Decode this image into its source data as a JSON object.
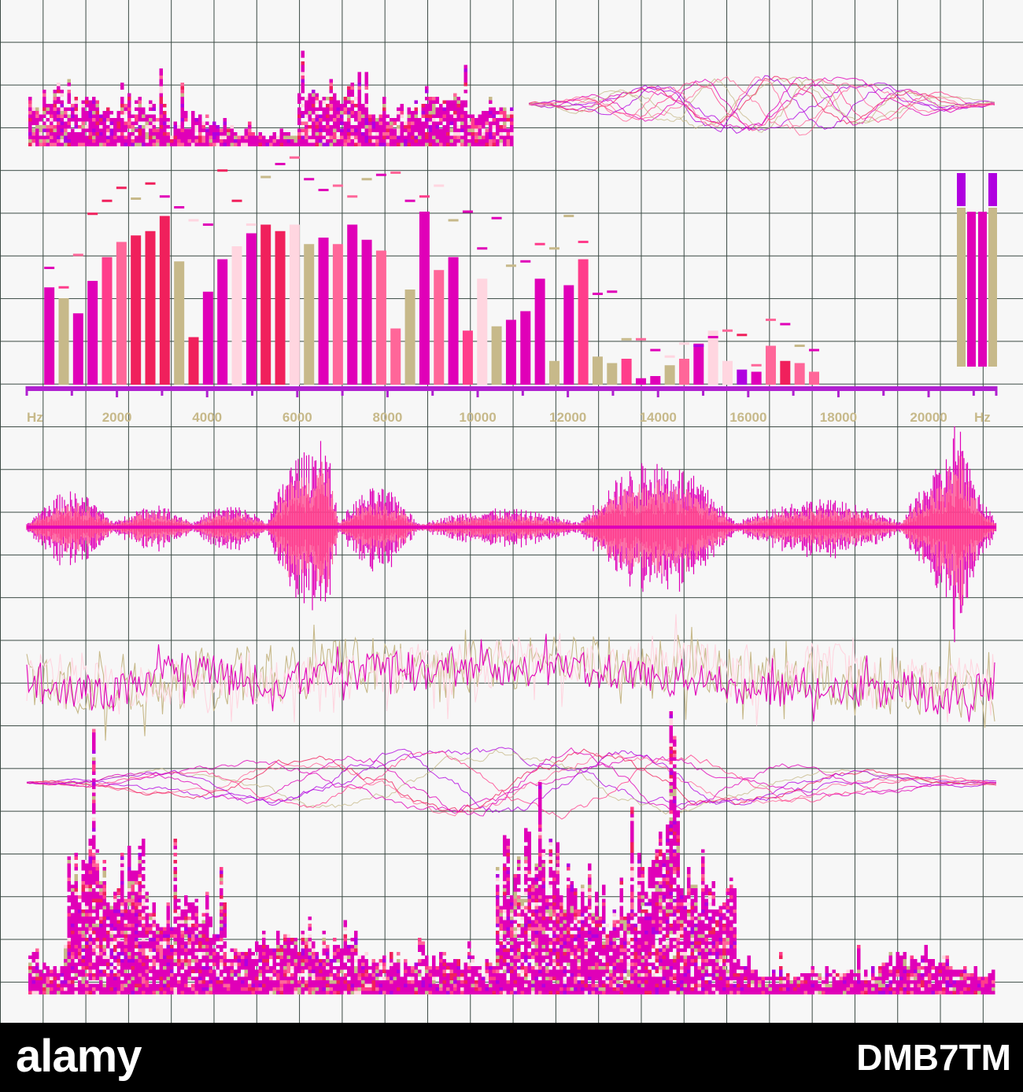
{
  "colors": {
    "magenta": "#e000b8",
    "pink": "#ff3d8b",
    "hot_pink": "#ff6699",
    "light_pink": "#ffd6e0",
    "khaki": "#c7b98a",
    "purple": "#b000e0",
    "red_pink": "#f0205c",
    "axis": "#b020d0",
    "grid": "#3b4a44",
    "background": "#f7f7f7",
    "footer": "#000000"
  },
  "chart_data": [
    {
      "type": "bar",
      "title": "",
      "xlabel": "Hz",
      "x_unit_label_left": "Hz",
      "x_unit_label_right": "Hz",
      "xlim": [
        0,
        21500
      ],
      "ylim": [
        0,
        1
      ],
      "tick_labels": [
        "2000",
        "4000",
        "6000",
        "8000",
        "10000",
        "12000",
        "14000",
        "16000",
        "18000",
        "20000"
      ],
      "tick_values": [
        2000,
        4000,
        6000,
        8000,
        10000,
        12000,
        14000,
        16000,
        18000,
        20000
      ],
      "bins_x": [
        500,
        820,
        1140,
        1460,
        1780,
        2100,
        2420,
        2740,
        3060,
        3380,
        3700,
        4020,
        4340,
        4660,
        4980,
        5300,
        5620,
        5940,
        6260,
        6580,
        6900,
        7220,
        7540,
        7860,
        8180,
        8500,
        8820,
        9140,
        9460,
        9780,
        10100,
        10420,
        10740,
        11060,
        11380,
        11700,
        12020,
        12340,
        12660,
        12980,
        13300,
        13620,
        13940,
        14260,
        14580,
        14900,
        15220,
        15540,
        15860,
        16180,
        16500,
        16820,
        17140,
        17460
      ],
      "values": [
        0.45,
        0.4,
        0.33,
        0.48,
        0.59,
        0.66,
        0.69,
        0.71,
        0.78,
        0.57,
        0.22,
        0.43,
        0.58,
        0.64,
        0.7,
        0.74,
        0.71,
        0.74,
        0.65,
        0.68,
        0.65,
        0.74,
        0.67,
        0.62,
        0.26,
        0.44,
        0.8,
        0.53,
        0.59,
        0.25,
        0.49,
        0.27,
        0.3,
        0.34,
        0.49,
        0.11,
        0.46,
        0.58,
        0.13,
        0.1,
        0.12,
        0.03,
        0.04,
        0.09,
        0.12,
        0.19,
        0.25,
        0.11,
        0.07,
        0.06,
        0.18,
        0.11,
        0.1,
        0.06
      ],
      "peaks": [
        0.54,
        0.45,
        0.6,
        0.79,
        0.85,
        0.91,
        0.86,
        0.93,
        0.87,
        0.82,
        0.76,
        0.74,
        0.99,
        0.85,
        0.74,
        0.96,
        1.02,
        1.05,
        0.95,
        0.9,
        0.92,
        0.87,
        0.95,
        0.97,
        0.98,
        0.85,
        0.87,
        0.92,
        0.76,
        0.8,
        0.63,
        0.77,
        0.55,
        0.57,
        0.65,
        0.63,
        0.78,
        0.66,
        0.42,
        0.43,
        0.21,
        0.21,
        0.16,
        0.13,
        0.19,
        0.18,
        0.22,
        0.25,
        0.23,
        0.09,
        0.3,
        0.28,
        0.18,
        0.16
      ],
      "colors": [
        "magenta",
        "khaki",
        "magenta",
        "magenta",
        "pink",
        "hot_pink",
        "red_pink",
        "red_pink",
        "red_pink",
        "khaki",
        "red_pink",
        "magenta",
        "magenta",
        "light_pink",
        "magenta",
        "red_pink",
        "red_pink",
        "light_pink",
        "khaki",
        "magenta",
        "hot_pink",
        "magenta",
        "magenta",
        "hot_pink",
        "hot_pink",
        "khaki",
        "magenta",
        "hot_pink",
        "magenta",
        "pink",
        "light_pink",
        "khaki",
        "magenta",
        "magenta",
        "magenta",
        "khaki",
        "magenta",
        "pink",
        "khaki",
        "khaki",
        "pink",
        "magenta",
        "magenta",
        "khaki",
        "hot_pink",
        "magenta",
        "light_pink",
        "light_pink",
        "purple",
        "magenta",
        "hot_pink",
        "red_pink",
        "hot_pink",
        "hot_pink"
      ]
    },
    {
      "type": "bar",
      "title": "",
      "legend": "none",
      "series": [
        {
          "values": [
            0.78,
            0.78
          ],
          "peaks": [
            0.95,
            0.95
          ],
          "color": "khaki"
        },
        {
          "values": [
            0.76,
            0.76
          ],
          "color": "magenta"
        }
      ]
    }
  ],
  "decorative_panels": [
    {
      "kind": "pixel-spectrum",
      "position": "top-left"
    },
    {
      "kind": "waveform-lines",
      "position": "top-right"
    },
    {
      "kind": "audio-waveform",
      "position": "middle"
    },
    {
      "kind": "noise-waveform",
      "position": "middle-lower"
    },
    {
      "kind": "waveform-lines",
      "position": "lower"
    },
    {
      "kind": "pixel-spectrum",
      "position": "bottom"
    }
  ],
  "footer": {
    "logo_text": "alamy",
    "stock_id": "DMB7TM"
  }
}
